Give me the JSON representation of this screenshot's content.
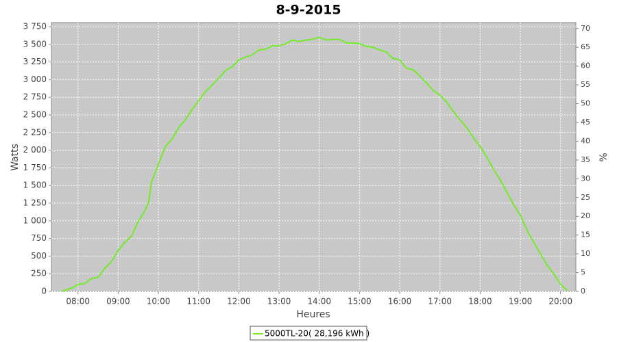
{
  "chart_data": {
    "type": "line",
    "title": "8-9-2015",
    "x_label": "Heures",
    "y_label": "Watts",
    "y2_label": "%",
    "x": [
      7.6,
      7.75,
      7.9,
      8.0,
      8.17,
      8.33,
      8.5,
      8.67,
      8.83,
      9.0,
      9.17,
      9.33,
      9.5,
      9.67,
      9.75,
      9.83,
      10.0,
      10.17,
      10.33,
      10.5,
      10.67,
      10.83,
      11.0,
      11.17,
      11.33,
      11.5,
      11.67,
      11.83,
      12.0,
      12.17,
      12.33,
      12.5,
      12.67,
      12.83,
      13.0,
      13.17,
      13.33,
      13.5,
      13.67,
      13.83,
      14.0,
      14.17,
      14.33,
      14.5,
      14.67,
      14.83,
      15.0,
      15.17,
      15.33,
      15.5,
      15.67,
      15.83,
      16.0,
      16.17,
      16.33,
      16.5,
      16.67,
      16.83,
      17.0,
      17.17,
      17.33,
      17.5,
      17.67,
      17.83,
      18.0,
      18.17,
      18.33,
      18.5,
      18.67,
      18.83,
      19.0,
      19.17,
      19.33,
      19.5,
      19.67,
      19.83,
      20.0,
      20.17
    ],
    "series": [
      {
        "name": "5000TL-20( 28,196 kWh )",
        "color": "#72ec28",
        "values": [
          0,
          30,
          60,
          100,
          110,
          180,
          200,
          330,
          420,
          580,
          700,
          780,
          990,
          1150,
          1250,
          1550,
          1800,
          2050,
          2150,
          2320,
          2430,
          2570,
          2700,
          2830,
          2920,
          3020,
          3130,
          3180,
          3280,
          3320,
          3350,
          3420,
          3430,
          3480,
          3480,
          3510,
          3560,
          3540,
          3560,
          3570,
          3600,
          3560,
          3570,
          3570,
          3520,
          3520,
          3510,
          3470,
          3460,
          3420,
          3390,
          3300,
          3280,
          3160,
          3140,
          3050,
          2950,
          2850,
          2780,
          2680,
          2550,
          2430,
          2320,
          2180,
          2050,
          1900,
          1730,
          1580,
          1400,
          1230,
          1080,
          860,
          700,
          530,
          370,
          250,
          100,
          10
        ]
      }
    ],
    "xlim": [
      7.34,
      20.38
    ],
    "xticks": [
      {
        "value": 8,
        "label": "08:00"
      },
      {
        "value": 9,
        "label": "09:00"
      },
      {
        "value": 10,
        "label": "10:00"
      },
      {
        "value": 11,
        "label": "11:00"
      },
      {
        "value": 12,
        "label": "12:00"
      },
      {
        "value": 13,
        "label": "13:00"
      },
      {
        "value": 14,
        "label": "14:00"
      },
      {
        "value": 15,
        "label": "15:00"
      },
      {
        "value": 16,
        "label": "16:00"
      },
      {
        "value": 17,
        "label": "17:00"
      },
      {
        "value": 18,
        "label": "18:00"
      },
      {
        "value": 19,
        "label": "19:00"
      },
      {
        "value": 20,
        "label": "20:00"
      }
    ],
    "ylim": [
      0,
      3808
    ],
    "yticks": [
      0,
      250,
      500,
      750,
      {
        "value": 1000,
        "label": "1 000"
      },
      {
        "value": 1250,
        "label": "1 250"
      },
      {
        "value": 1500,
        "label": "1 500"
      },
      {
        "value": 1750,
        "label": "1 750"
      },
      {
        "value": 2000,
        "label": "2 000"
      },
      {
        "value": 2250,
        "label": "2 250"
      },
      {
        "value": 2500,
        "label": "2 500"
      },
      {
        "value": 2750,
        "label": "2 750"
      },
      {
        "value": 3000,
        "label": "3 000"
      },
      {
        "value": 3250,
        "label": "3 250"
      },
      {
        "value": 3500,
        "label": "3 500"
      },
      {
        "value": 3750,
        "label": "3 750"
      }
    ],
    "y2lim": [
      0,
      71.6
    ],
    "y2ticks": [
      0,
      5,
      10,
      15,
      20,
      25,
      30,
      35,
      40,
      45,
      50,
      55,
      60,
      65,
      70
    ],
    "grid": true
  }
}
